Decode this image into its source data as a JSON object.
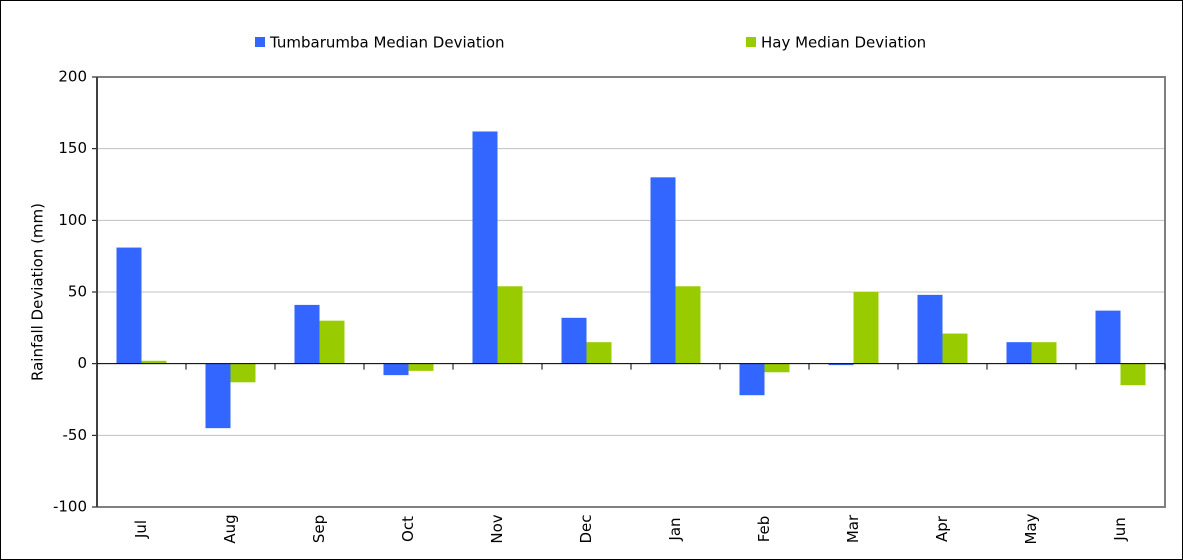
{
  "chart_data": {
    "type": "bar",
    "categories": [
      "Jul",
      "Aug",
      "Sep",
      "Oct",
      "Nov",
      "Dec",
      "Jan",
      "Feb",
      "Mar",
      "Apr",
      "May",
      "Jun"
    ],
    "series": [
      {
        "name": "Tumbarumba Median Deviation",
        "color": "#3366ff",
        "values": [
          81,
          -45,
          41,
          -8,
          162,
          32,
          130,
          -22,
          -1,
          48,
          15,
          37
        ]
      },
      {
        "name": "Hay Median Deviation",
        "color": "#99cc00",
        "values": [
          2,
          -13,
          30,
          -5,
          54,
          15,
          54,
          -6,
          50,
          21,
          15,
          -15
        ]
      }
    ],
    "y_label": "Rainfall Deviation (mm)",
    "ylim": [
      -100,
      200
    ],
    "yticks": [
      -100,
      -50,
      0,
      50,
      100,
      150,
      200
    ],
    "grid": true,
    "legend": "top"
  }
}
